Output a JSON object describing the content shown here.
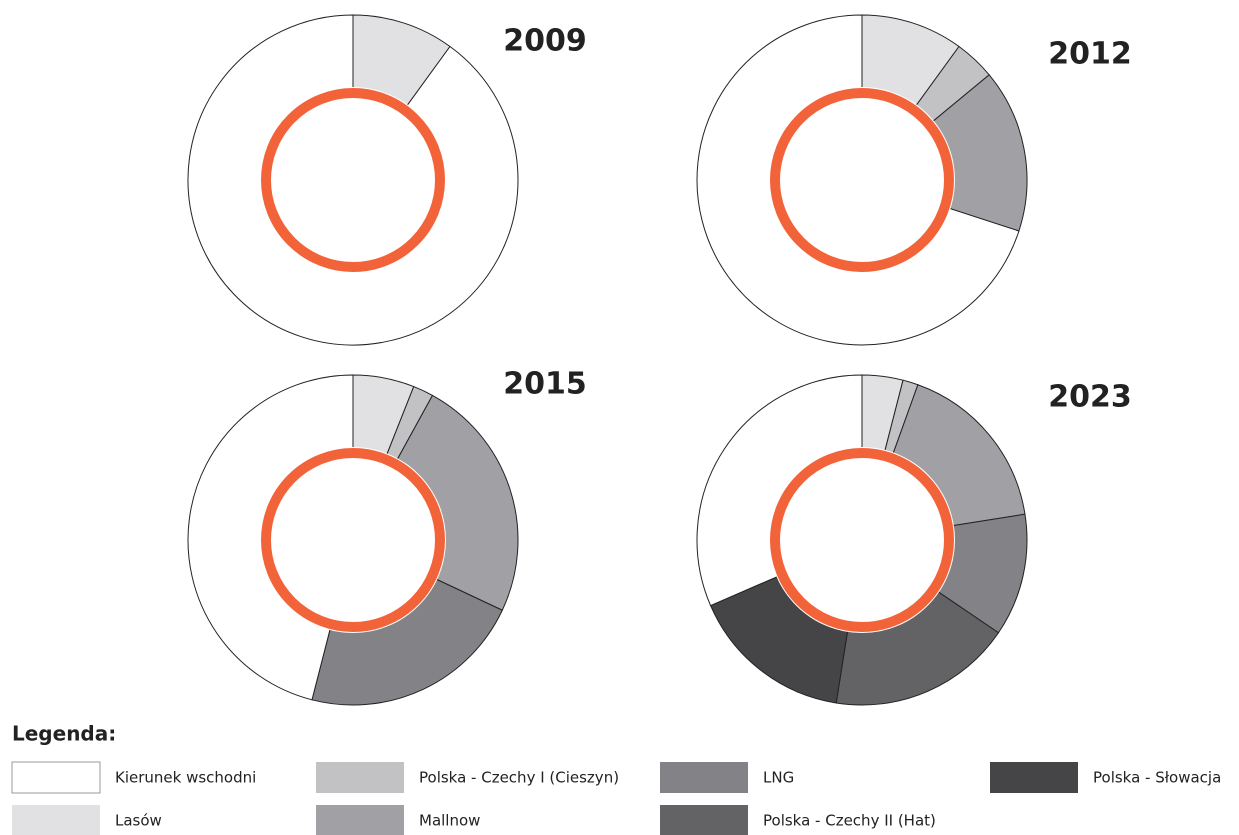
{
  "chart_data": [
    {
      "type": "pie",
      "title": "2009",
      "categories": [
        "Lasów",
        "Kierunek wschodni"
      ],
      "colors": [
        "#e1e1e3",
        "#ffffff"
      ],
      "values": [
        10,
        90
      ]
    },
    {
      "type": "pie",
      "title": "2012",
      "categories": [
        "Lasów",
        "Polska - Czechy I (Cieszyn)",
        "Mallnow",
        "Kierunek wschodni"
      ],
      "colors": [
        "#e1e1e3",
        "#c2c2c4",
        "#a1a1a5",
        "#ffffff"
      ],
      "values": [
        10,
        4,
        16,
        70
      ]
    },
    {
      "type": "pie",
      "title": "2015",
      "categories": [
        "Lasów",
        "Polska - Czechy I (Cieszyn)",
        "Mallnow",
        "LNG",
        "Kierunek wschodni"
      ],
      "colors": [
        "#e1e1e3",
        "#c2c2c4",
        "#a1a1a5",
        "#838387",
        "#ffffff"
      ],
      "values": [
        6,
        2,
        24,
        22,
        46
      ]
    },
    {
      "type": "pie",
      "title": "2023",
      "categories": [
        "Lasów",
        "Polska - Czechy I (Cieszyn)",
        "Mallnow",
        "LNG",
        "Polska - Czechy II (Hat)",
        "Polska - Słowacja",
        "Kierunek wschodni"
      ],
      "colors": [
        "#e1e1e3",
        "#c2c2c4",
        "#a1a1a5",
        "#838387",
        "#636366",
        "#454548",
        "#ffffff"
      ],
      "values": [
        4,
        1.5,
        17,
        12,
        18,
        16,
        31.5
      ]
    }
  ],
  "legend": {
    "title": "Legenda:",
    "items": [
      {
        "name": "Kierunek wschodni",
        "color": "#ffffff"
      },
      {
        "name": "Lasów",
        "color": "#e1e1e3"
      },
      {
        "name": "Polska - Czechy I (Cieszyn)",
        "color": "#c2c2c4"
      },
      {
        "name": "Mallnow",
        "color": "#a1a1a5"
      },
      {
        "name": "LNG",
        "color": "#838387"
      },
      {
        "name": "Polska - Czechy II (Hat)",
        "color": "#636366"
      },
      {
        "name": "Polska - Słowacja",
        "color": "#454548"
      }
    ]
  }
}
